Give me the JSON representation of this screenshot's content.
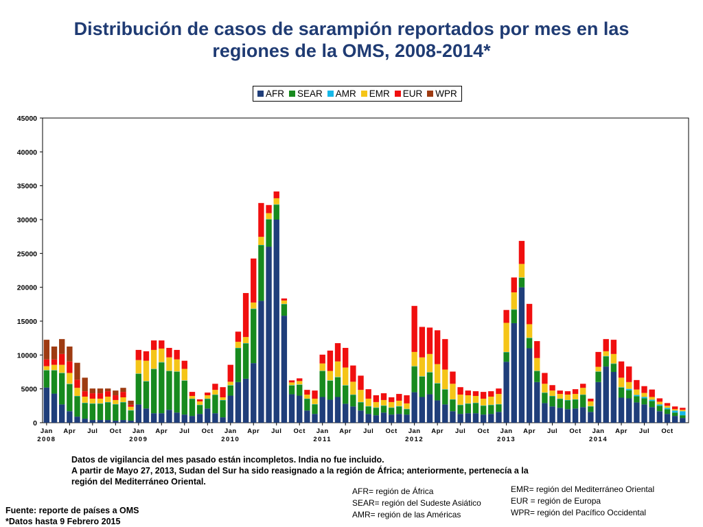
{
  "title_line1": "Distribución de casos de sarampión reportados por mes en las",
  "title_line2": "regiones de la OMS, 2008-2014*",
  "legend": [
    {
      "label": "AFR",
      "color": "#1F3E7A"
    },
    {
      "label": "SEAR",
      "color": "#178A1E"
    },
    {
      "label": "AMR",
      "color": "#16B8E8"
    },
    {
      "label": "EMR",
      "color": "#F5C518"
    },
    {
      "label": "EUR",
      "color": "#F00F0F"
    },
    {
      "label": "WPR",
      "color": "#9E3B12"
    }
  ],
  "notes": {
    "line1": "Datos de vigilancia del mes pasado están incompletos.  India no fue incluido.",
    "line2": "A partir de Mayo 27, 2013, Sudan del Sur ha sido reasignado a la región de África; anteriormente, pertenecía a la",
    "line3": "región del Mediterráneo Oriental."
  },
  "definitions_left": [
    "AFR= región de África",
    "SEAR= región del Sudeste Asiático",
    "AMR= región de las Américas"
  ],
  "definitions_right": [
    "EMR= región del Mediterráneo Oriental",
    "EUR = región de Europa",
    "WPR= región del Pacífico Occidental"
  ],
  "source": {
    "line1": "Fuente: reporte de países a OMS",
    "line2": "*Datos hasta 9 Febrero 2015"
  },
  "chart_data": {
    "type": "bar",
    "stacked": true,
    "ylim": [
      0,
      45000
    ],
    "yticks": [
      0,
      5000,
      10000,
      15000,
      20000,
      25000,
      30000,
      35000,
      40000,
      45000
    ],
    "x_tick_labels": [
      {
        "index": 0,
        "month": "Jan",
        "year": "2008"
      },
      {
        "index": 3,
        "month": "Apr",
        "year": ""
      },
      {
        "index": 6,
        "month": "Jul",
        "year": ""
      },
      {
        "index": 9,
        "month": "Oct",
        "year": ""
      },
      {
        "index": 12,
        "month": "Jan",
        "year": "2009"
      },
      {
        "index": 15,
        "month": "Apr",
        "year": ""
      },
      {
        "index": 18,
        "month": "Jul",
        "year": ""
      },
      {
        "index": 21,
        "month": "Oct",
        "year": ""
      },
      {
        "index": 24,
        "month": "Jan",
        "year": "2010"
      },
      {
        "index": 27,
        "month": "Apr",
        "year": ""
      },
      {
        "index": 30,
        "month": "Jul",
        "year": ""
      },
      {
        "index": 33,
        "month": "Oct",
        "year": ""
      },
      {
        "index": 36,
        "month": "Jan",
        "year": "2011"
      },
      {
        "index": 39,
        "month": "Apr",
        "year": ""
      },
      {
        "index": 42,
        "month": "Jul",
        "year": ""
      },
      {
        "index": 45,
        "month": "Oct",
        "year": ""
      },
      {
        "index": 48,
        "month": "Jan",
        "year": "2012"
      },
      {
        "index": 51,
        "month": "Apr",
        "year": ""
      },
      {
        "index": 54,
        "month": "Jul",
        "year": ""
      },
      {
        "index": 57,
        "month": "Oct",
        "year": ""
      },
      {
        "index": 60,
        "month": "Jan",
        "year": "2013"
      },
      {
        "index": 63,
        "month": "Apr",
        "year": ""
      },
      {
        "index": 66,
        "month": "Jul",
        "year": ""
      },
      {
        "index": 69,
        "month": "Oct",
        "year": ""
      },
      {
        "index": 72,
        "month": "Jan",
        "year": "2014"
      },
      {
        "index": 75,
        "month": "Apr",
        "year": ""
      },
      {
        "index": 78,
        "month": "Jul",
        "year": ""
      },
      {
        "index": 81,
        "month": "Oct",
        "year": ""
      }
    ],
    "series": [
      {
        "name": "AFR",
        "color": "#1F3E7A",
        "values": [
          5200,
          4300,
          2700,
          1700,
          900,
          600,
          400,
          400,
          400,
          300,
          400,
          300,
          2700,
          2100,
          1400,
          1400,
          1900,
          1500,
          1200,
          1000,
          1300,
          2100,
          1400,
          800,
          4000,
          6000,
          6500,
          8800,
          18000,
          26000,
          30000,
          15800,
          4200,
          4000,
          1800,
          1300,
          3800,
          3400,
          3800,
          2800,
          2400,
          1800,
          1300,
          1100,
          1500,
          1200,
          1300,
          1200,
          4500,
          3800,
          4200,
          3300,
          2700,
          1700,
          1300,
          1400,
          1400,
          1200,
          1300,
          1600,
          9000,
          14700,
          20000,
          11000,
          6000,
          2900,
          2400,
          2200,
          2000,
          2100,
          2300,
          1600,
          6000,
          8300,
          7500,
          3700,
          3600,
          3000,
          2700,
          2300,
          1700,
          1300,
          1000,
          700
        ]
      },
      {
        "name": "SEAR",
        "color": "#178A1E",
        "values": [
          2500,
          3400,
          4600,
          4000,
          3000,
          2300,
          2400,
          2400,
          2600,
          2400,
          2600,
          1500,
          4500,
          4000,
          6500,
          7500,
          5700,
          6000,
          5000,
          2500,
          1300,
          1400,
          2700,
          2500,
          1500,
          5000,
          5200,
          8000,
          8200,
          4000,
          2200,
          1700,
          1300,
          1600,
          1700,
          1400,
          3800,
          2800,
          2900,
          2700,
          1700,
          1200,
          1100,
          1100,
          1000,
          1000,
          1100,
          800,
          3800,
          3000,
          3200,
          2500,
          2200,
          1700,
          1300,
          1400,
          1500,
          1300,
          1300,
          1100,
          1400,
          2000,
          1400,
          1500,
          1600,
          1500,
          1500,
          1300,
          1300,
          1300,
          1800,
          800,
          1500,
          1500,
          1200,
          1500,
          1200,
          900,
          900,
          900,
          800,
          700,
          500,
          400
        ]
      },
      {
        "name": "AMR",
        "color": "#16B8E8",
        "values": [
          50,
          50,
          50,
          50,
          50,
          50,
          50,
          50,
          50,
          50,
          50,
          50,
          50,
          50,
          50,
          50,
          50,
          50,
          50,
          50,
          50,
          50,
          50,
          50,
          50,
          50,
          50,
          50,
          50,
          50,
          50,
          50,
          50,
          50,
          50,
          50,
          50,
          50,
          50,
          50,
          50,
          50,
          50,
          50,
          50,
          50,
          50,
          50,
          50,
          50,
          50,
          50,
          50,
          50,
          50,
          50,
          50,
          50,
          50,
          50,
          50,
          50,
          50,
          50,
          50,
          50,
          50,
          50,
          50,
          50,
          50,
          50,
          50,
          50,
          50,
          50,
          200,
          200,
          200,
          200,
          200,
          200,
          300,
          600
        ]
      },
      {
        "name": "EMR",
        "color": "#F5C518",
        "values": [
          600,
          800,
          1200,
          1600,
          1200,
          900,
          700,
          700,
          800,
          600,
          700,
          500,
          2000,
          3000,
          2800,
          2000,
          2000,
          1800,
          1700,
          400,
          500,
          500,
          700,
          400,
          500,
          900,
          900,
          900,
          1200,
          900,
          900,
          500,
          400,
          500,
          600,
          800,
          1100,
          1400,
          2300,
          2600,
          1900,
          1800,
          1100,
          800,
          800,
          800,
          800,
          800,
          2100,
          2800,
          2700,
          2800,
          2900,
          2300,
          1500,
          1200,
          1000,
          1000,
          1200,
          1500,
          4300,
          2500,
          2000,
          2000,
          1900,
          1300,
          800,
          700,
          800,
          800,
          1000,
          700,
          700,
          700,
          1400,
          1400,
          1000,
          800,
          600,
          400,
          400,
          300,
          200,
          200
        ]
      },
      {
        "name": "EUR",
        "color": "#F00F0F",
        "values": [
          1000,
          800,
          1600,
          1700,
          1200,
          800,
          800,
          800,
          800,
          700,
          800,
          300,
          1500,
          1400,
          1400,
          1200,
          1400,
          1400,
          1200,
          600,
          300,
          400,
          900,
          1500,
          2500,
          1500,
          6500,
          6500,
          5000,
          1200,
          1000,
          300,
          300,
          400,
          700,
          1200,
          1300,
          3000,
          2700,
          2900,
          2400,
          2100,
          1400,
          1000,
          1000,
          700,
          1000,
          1200,
          6800,
          4500,
          3900,
          5000,
          4500,
          1800,
          1100,
          700,
          700,
          1000,
          800,
          800,
          1900,
          2200,
          3400,
          3000,
          2500,
          1600,
          800,
          500,
          500,
          700,
          600,
          400,
          2200,
          1800,
          2100,
          2400,
          2300,
          1400,
          1000,
          1100,
          500,
          400,
          400,
          300
        ]
      },
      {
        "name": "WPR",
        "color": "#9E3B12",
        "values": [
          2900,
          1900,
          2200,
          2200,
          2500,
          2000,
          700,
          700,
          400,
          700,
          600,
          600,
          0,
          0,
          0,
          0,
          0,
          0,
          0,
          0,
          0,
          0,
          0,
          0,
          0,
          0,
          0,
          0,
          0,
          0,
          0,
          0,
          0,
          0,
          0,
          0,
          0,
          0,
          0,
          0,
          0,
          0,
          0,
          0,
          0,
          0,
          0,
          0,
          0,
          0,
          0,
          0,
          0,
          0,
          0,
          0,
          0,
          0,
          0,
          0,
          0,
          0,
          0,
          0,
          0,
          0,
          0,
          0,
          0,
          0,
          0,
          0,
          0,
          0,
          0,
          0,
          0,
          0,
          0,
          0,
          0,
          0,
          0,
          0
        ]
      }
    ]
  }
}
